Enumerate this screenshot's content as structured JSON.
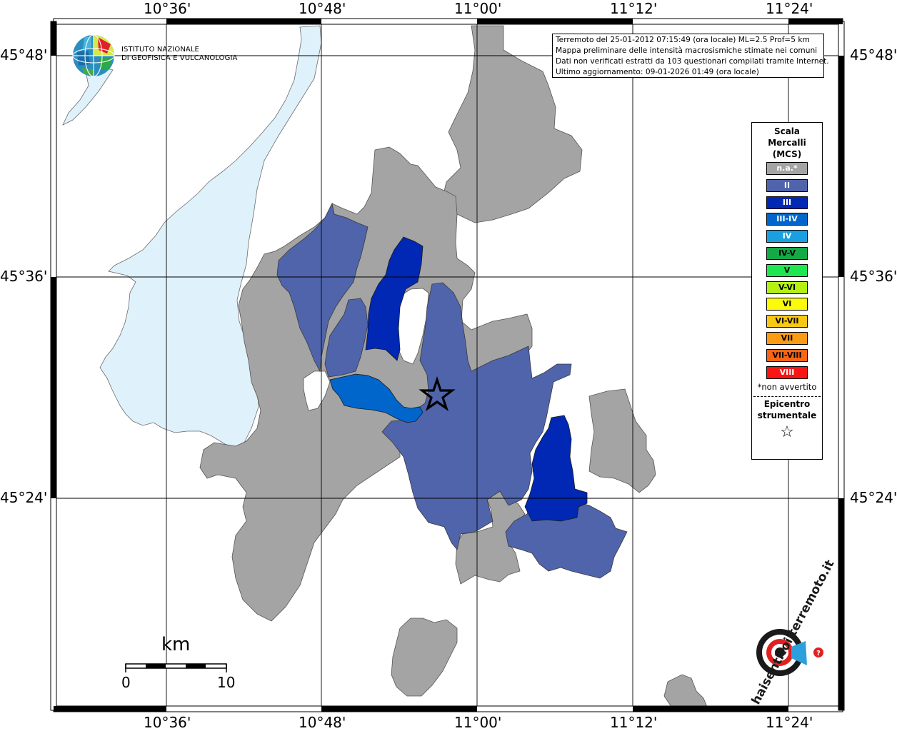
{
  "colors": {
    "lake": "#dff1fb",
    "na": "#a4a4a4",
    "land_outline": "#5a5a5a"
  },
  "info": {
    "line1": "Terremoto del 25-01-2012 07:15:49 (ora locale) ML=2.5 Prof=5 km",
    "line2": "Mappa preliminare delle intensità macrosismiche stimate nei comuni",
    "line3": "Dati non verificati estratti da 103 questionari compilati tramite Internet.",
    "line4": "Ultimo aggiornamento: 09-01-2026 01:49 (ora locale)"
  },
  "logo": {
    "org_line1": "ISTITUTO NAZIONALE",
    "org_line2": "DI GEOFISICA E VULCANOLOGIA",
    "site_logo_text": "haisentitoilterremoto.it"
  },
  "axes": {
    "top": [
      "10°36'",
      "10°48'",
      "11°00'",
      "11°12'",
      "11°24'"
    ],
    "bottom": [
      "10°36'",
      "10°48'",
      "11°00'",
      "11°12'",
      "11°24'"
    ],
    "left": [
      "45°48'",
      "45°36'",
      "45°24'"
    ],
    "right": [
      "45°48'",
      "45°36'",
      "45°24'"
    ]
  },
  "scale_bar": {
    "unit": "km",
    "min": "0",
    "max": "10"
  },
  "legend": {
    "title_line1": "Scala",
    "title_line2": "Mercalli",
    "title_line3": "(MCS)",
    "items": [
      {
        "label": "n.a.*",
        "color": "#a4a4a4",
        "text_color": "#ffffff"
      },
      {
        "label": "II",
        "color": "#4f64aa",
        "text_color": "#ffffff"
      },
      {
        "label": "III",
        "color": "#0028b4",
        "text_color": "#ffffff"
      },
      {
        "label": "III-IV",
        "color": "#0066cc",
        "text_color": "#ffffff"
      },
      {
        "label": "IV",
        "color": "#1aa0e0",
        "text_color": "#ffffff"
      },
      {
        "label": "IV-V",
        "color": "#14a846",
        "text_color": "#000000"
      },
      {
        "label": "V",
        "color": "#1ee650",
        "text_color": "#000000"
      },
      {
        "label": "V-VI",
        "color": "#b4f014",
        "text_color": "#000000"
      },
      {
        "label": "VI",
        "color": "#fafa0a",
        "text_color": "#000000"
      },
      {
        "label": "VI-VII",
        "color": "#fac814",
        "text_color": "#000000"
      },
      {
        "label": "VII",
        "color": "#fa9b14",
        "text_color": "#000000"
      },
      {
        "label": "VII-VIII",
        "color": "#fa6414",
        "text_color": "#000000"
      },
      {
        "label": "VIII",
        "color": "#fa1414",
        "text_color": "#ffffff"
      }
    ],
    "note": "*non avvertito",
    "epicenter_line1": "Epicentro",
    "epicenter_line2": "strumentale",
    "star": "☆"
  }
}
